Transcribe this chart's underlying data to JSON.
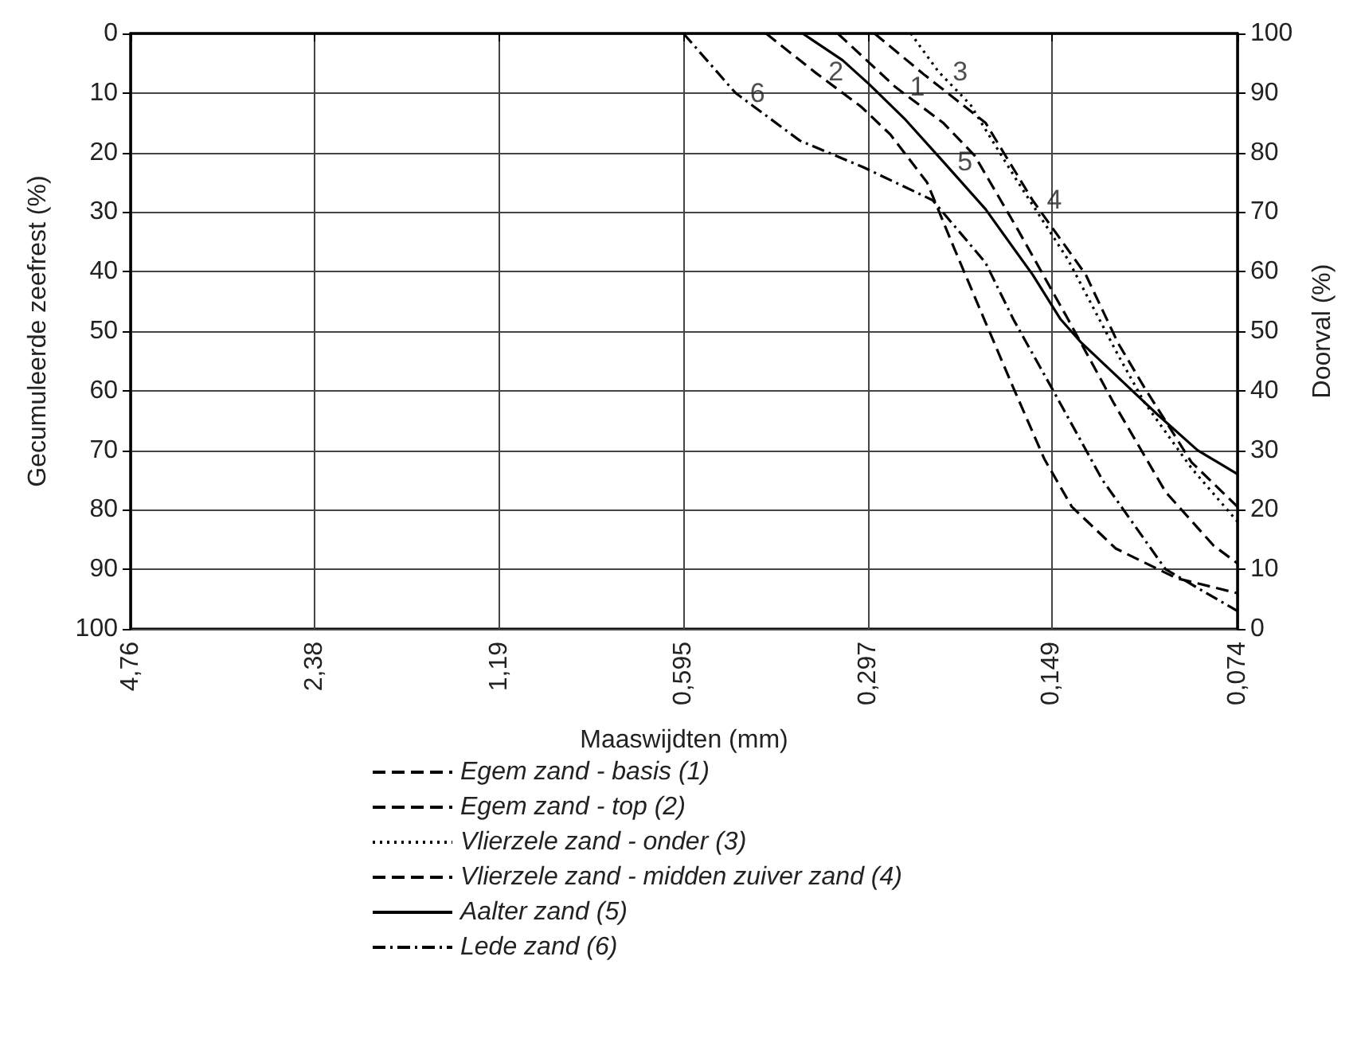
{
  "chart_data": {
    "type": "line",
    "xlabel": "Maaswijdten (mm)",
    "ylabel": "Gecumuleerde zeefrest (%)",
    "y2label": "Doorval (%)",
    "log": "x",
    "xlim": [
      4.76,
      0.074
    ],
    "xticks": [
      {
        "value": 4.76,
        "label": "4,76"
      },
      {
        "value": 2.38,
        "label": "2,38"
      },
      {
        "value": 1.19,
        "label": "1,19"
      },
      {
        "value": 0.595,
        "label": "0,595"
      },
      {
        "value": 0.297,
        "label": "0,297"
      },
      {
        "value": 0.149,
        "label": "0,149"
      },
      {
        "value": 0.074,
        "label": "0,074"
      }
    ],
    "ylim": [
      100,
      0
    ],
    "yticks": [
      0,
      10,
      20,
      30,
      40,
      50,
      60,
      70,
      80,
      90,
      100
    ],
    "y2lim": [
      0,
      100
    ],
    "y2ticks": [
      0,
      10,
      20,
      30,
      40,
      50,
      60,
      70,
      80,
      90,
      100
    ],
    "grid": true,
    "legend": "bottom",
    "marker": "none",
    "series": [
      {
        "name": "Egem zand - basis (1)",
        "color": "#000000",
        "line_style": "dashed",
        "x": [
          0.333,
          0.268,
          0.224,
          0.199,
          0.169,
          0.14,
          0.118,
          0.097,
          0.081,
          0.074
        ],
        "values": [
          0,
          9,
          15,
          20.5,
          33,
          48,
          62,
          77,
          86,
          89
        ]
      },
      {
        "name": "Egem zand - top (2)",
        "color": "#000000",
        "line_style": "dashed",
        "x": [
          0.436,
          0.364,
          0.305,
          0.273,
          0.238,
          0.215,
          0.191,
          0.172,
          0.153,
          0.138,
          0.117,
          0.093,
          0.074
        ],
        "values": [
          0,
          6.4,
          12.3,
          17,
          25,
          36,
          48.5,
          59.5,
          71.5,
          79.5,
          86.5,
          91.5,
          94
        ]
      },
      {
        "name": "Vlierzele zand - onder (3)",
        "color": "#000000",
        "line_style": "dotted",
        "x": [
          0.253,
          0.228,
          0.202,
          0.194,
          0.169,
          0.14,
          0.116,
          0.105,
          0.088,
          0.074
        ],
        "values": [
          0,
          6.4,
          12,
          15,
          25,
          38,
          54,
          62,
          73,
          82
        ]
      },
      {
        "name": "Vlierzele zand - midden zuiver zand (4)",
        "color": "#000000",
        "line_style": "dashed",
        "x": [
          0.29,
          0.24,
          0.191,
          0.16,
          0.131,
          0.116,
          0.105,
          0.088,
          0.074
        ],
        "values": [
          0,
          7,
          15,
          28,
          40.5,
          52,
          59.5,
          72,
          79.5
        ]
      },
      {
        "name": "Aalter zand (5)",
        "color": "#000000",
        "line_style": "solid",
        "x": [
          0.38,
          0.327,
          0.296,
          0.258,
          0.224,
          0.191,
          0.16,
          0.144,
          0.133,
          0.1,
          0.086,
          0.074
        ],
        "values": [
          0,
          4.5,
          8.5,
          14.5,
          21.5,
          29.5,
          40.5,
          48,
          52,
          64,
          70,
          74
        ]
      },
      {
        "name": "Lede zand (6)",
        "color": "#000000",
        "line_style": "dashdot",
        "x": [
          0.595,
          0.489,
          0.384,
          0.302,
          0.233,
          0.191,
          0.172,
          0.148,
          0.123,
          0.097,
          0.074
        ],
        "values": [
          0,
          10,
          18,
          22.5,
          28,
          38.5,
          48,
          60,
          75,
          90,
          97
        ]
      }
    ],
    "annotations": [
      {
        "text": "1",
        "x": 0.268,
        "y": 9
      },
      {
        "text": "2",
        "x": 0.364,
        "y": 6.4
      },
      {
        "text": "3",
        "x": 0.228,
        "y": 6.4
      },
      {
        "text": "4",
        "x": 0.16,
        "y": 28
      },
      {
        "text": "5",
        "x": 0.224,
        "y": 21.5
      },
      {
        "text": "6",
        "x": 0.489,
        "y": 10
      }
    ]
  }
}
